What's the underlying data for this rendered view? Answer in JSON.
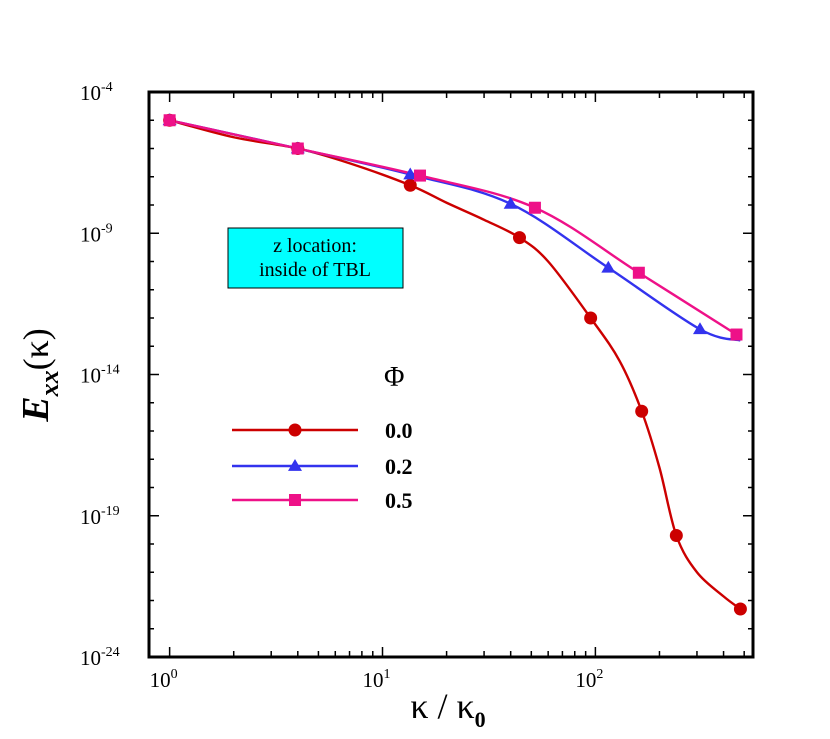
{
  "chart_data": {
    "type": "line",
    "xscale": "log",
    "yscale": "log",
    "xlim": [
      0.8,
      550
    ],
    "ylim": [
      1e-24,
      0.0001
    ],
    "xticks": [
      {
        "value": 1,
        "base": "10",
        "exp": "0"
      },
      {
        "value": 10,
        "base": "10",
        "exp": "1"
      },
      {
        "value": 100,
        "base": "10",
        "exp": "2"
      }
    ],
    "yticks": [
      {
        "value": 0.0001,
        "base": "10",
        "exp": "-4"
      },
      {
        "value": 1e-09,
        "base": "10",
        "exp": "-9"
      },
      {
        "value": 1e-14,
        "base": "10",
        "exp": "-14"
      },
      {
        "value": 1e-19,
        "base": "10",
        "exp": "-19"
      },
      {
        "value": 1e-24,
        "base": "10",
        "exp": "-24"
      }
    ],
    "xlabel": {
      "k1": "κ",
      "slash": " / ",
      "k2": "κ",
      "sub": "0"
    },
    "ylabel": {
      "main": "E",
      "sub": "xx",
      "arg": "(κ)"
    },
    "legend_title": "Φ",
    "annotation": [
      "z location:",
      "inside of TBL"
    ],
    "annotation_bg": "#00ffff",
    "series": [
      {
        "name": "0.0",
        "color": "#cc0000",
        "marker": "circle",
        "x": [
          1,
          2,
          4,
          7,
          13.5,
          20,
          30,
          44,
          60,
          95,
          130,
          165,
          200,
          240,
          300,
          400,
          480
        ],
        "y": [
          1e-05,
          2.5e-06,
          1e-06,
          3e-07,
          5e-08,
          1.2e-08,
          3e-09,
          7e-10,
          1e-10,
          1e-12,
          3e-14,
          5e-16,
          5e-18,
          2e-20,
          1e-21,
          1.4e-22,
          5e-23
        ],
        "markers_x": [
          1,
          4,
          13.5,
          44,
          95,
          165,
          240,
          480
        ],
        "markers_y": [
          1e-05,
          1e-06,
          5e-08,
          7e-10,
          1e-12,
          5e-16,
          2e-20,
          5e-23
        ]
      },
      {
        "name": "0.2",
        "color": "#3333ee",
        "marker": "triangle",
        "x": [
          1,
          4,
          13.5,
          40,
          115,
          310,
          480
        ],
        "y": [
          1e-05,
          1e-06,
          1.2e-07,
          1.1e-08,
          6e-11,
          4e-13,
          1.6e-13
        ],
        "markers_x": [
          1,
          4,
          13.5,
          40,
          115,
          310
        ],
        "markers_y": [
          1e-05,
          1e-06,
          1.2e-07,
          1.1e-08,
          6e-11,
          4e-13
        ]
      },
      {
        "name": "0.5",
        "color": "#ee1188",
        "marker": "square",
        "x": [
          1,
          4,
          15,
          52,
          160,
          460
        ],
        "y": [
          1e-05,
          1e-06,
          1.1e-07,
          8e-09,
          4e-11,
          2.6e-13
        ],
        "markers_x": [
          1,
          4,
          15,
          52,
          160,
          460
        ],
        "markers_y": [
          1e-05,
          1e-06,
          1.1e-07,
          8e-09,
          4e-11,
          2.6e-13
        ]
      }
    ]
  }
}
